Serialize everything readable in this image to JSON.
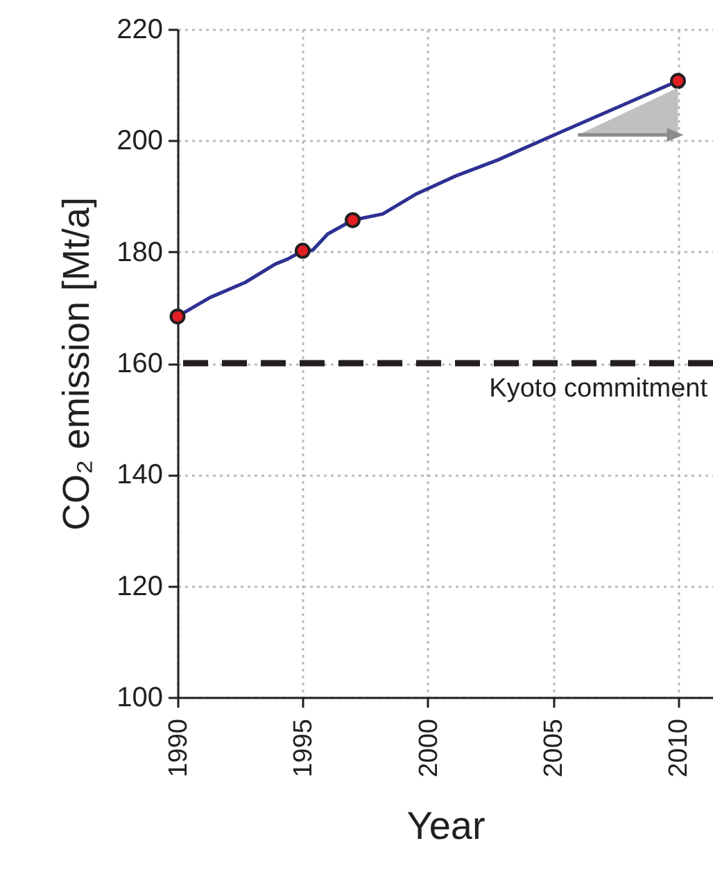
{
  "chart_data": {
    "type": "line",
    "xlabel": "Year",
    "ylabel": "CO₂ emission  [Mt/a]",
    "xlim": [
      1990,
      2011.4
    ],
    "xticks": [
      1990,
      1995,
      2000,
      2005,
      2010
    ],
    "ylim": [
      100,
      220
    ],
    "yticks": [
      100,
      120,
      140,
      160,
      180,
      200,
      220
    ],
    "grid": true,
    "series": [
      {
        "color": "#2e3192",
        "marker": "none",
        "x": [
          1990,
          1991.3,
          1992.7,
          1993.9,
          1994.4,
          1995,
          1995.4,
          1996,
          1997,
          1998.2,
          1999.5,
          2001.1,
          2002.8,
          2004.9,
          2010
        ],
        "values": [
          168.4,
          171.8,
          174.5,
          177.8,
          178.7,
          180.2,
          180.3,
          183.2,
          185.7,
          186.8,
          190.3,
          193.6,
          196.5,
          200.7,
          210.7
        ]
      },
      {
        "type": "scatter",
        "color": "#e31e24",
        "marker": "circle",
        "x": [
          1990,
          1995,
          1997,
          2010
        ],
        "values": [
          168.4,
          180.2,
          185.7,
          210.7
        ]
      }
    ],
    "ref_lines": [
      {
        "axis": "y",
        "value": 160,
        "label": "Kyoto commitment",
        "color": "#231f20",
        "line_style": "dashed"
      }
    ]
  }
}
